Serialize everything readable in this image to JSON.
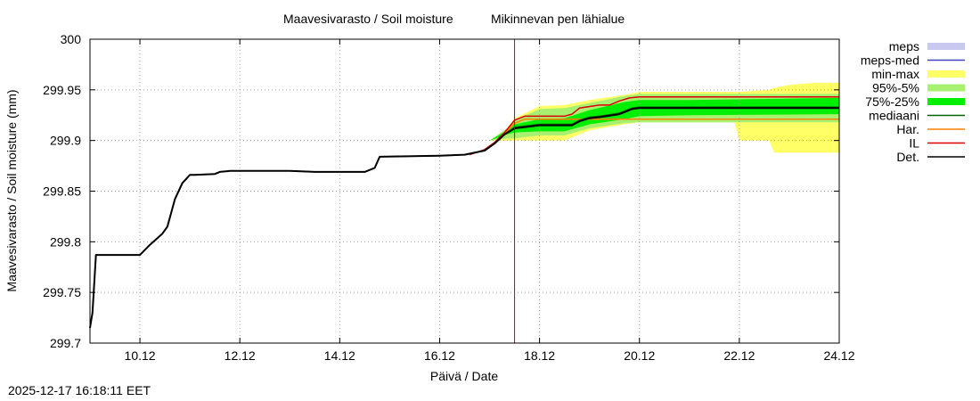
{
  "chart_data": {
    "type": "line",
    "title": "Maavesivarasto / Soil moisture",
    "location": "Mikinnevan pen lähialue",
    "xlabel": "Päivä / Date",
    "ylabel": "Maavesivarasto / Soil moisture (mm)",
    "x_unit": "days since 2025-12-09 00:00",
    "xlim": [
      0,
      15
    ],
    "ylim": [
      299.7,
      300.0
    ],
    "x_ticks": [
      {
        "value": 1,
        "label": "10.12"
      },
      {
        "value": 3,
        "label": "12.12"
      },
      {
        "value": 5,
        "label": "14.12"
      },
      {
        "value": 7,
        "label": "16.12"
      },
      {
        "value": 9,
        "label": "18.12"
      },
      {
        "value": 11,
        "label": "20.12"
      },
      {
        "value": 13,
        "label": "22.12"
      },
      {
        "value": 15,
        "label": "24.12"
      }
    ],
    "y_ticks": [
      {
        "value": 299.7,
        "label": "299.7"
      },
      {
        "value": 299.75,
        "label": "299.75"
      },
      {
        "value": 299.8,
        "label": "299.8"
      },
      {
        "value": 299.85,
        "label": "299.85"
      },
      {
        "value": 299.9,
        "label": "299.9"
      },
      {
        "value": 299.95,
        "label": "299.95"
      },
      {
        "value": 300.0,
        "label": "300"
      }
    ],
    "now_marker_x": 8.5,
    "legend": [
      {
        "key": "meps",
        "label": "meps",
        "color": "#c8c8f0",
        "style": "band"
      },
      {
        "key": "meps_med",
        "label": "meps-med",
        "color": "#4040c0",
        "style": "line"
      },
      {
        "key": "minmax",
        "label": "min-max",
        "color": "#ffff66",
        "style": "band"
      },
      {
        "key": "p95_5",
        "label": "95%-5%",
        "color": "#a8f070",
        "style": "band"
      },
      {
        "key": "p75_25",
        "label": "75%-25%",
        "color": "#00ee00",
        "style": "band"
      },
      {
        "key": "median",
        "label": "mediaani",
        "color": "#006400",
        "style": "line"
      },
      {
        "key": "har",
        "label": "Har.",
        "color": "#ff8000",
        "style": "line"
      },
      {
        "key": "il",
        "label": "IL",
        "color": "#dd0000",
        "style": "line"
      },
      {
        "key": "det",
        "label": "Det.",
        "color": "#000000",
        "style": "line"
      }
    ],
    "series": {
      "det": {
        "name": "Det.",
        "x": [
          0,
          0.05,
          0.12,
          1.0,
          1.2,
          1.45,
          1.55,
          1.7,
          1.85,
          2.0,
          2.1,
          2.5,
          2.6,
          2.8,
          3.0,
          4.0,
          4.5,
          5.0,
          5.5,
          5.7,
          5.8,
          7.0,
          7.5,
          7.9,
          8.1,
          8.3,
          8.5,
          9.0,
          9.5,
          9.65,
          9.8,
          10.0,
          10.2,
          10.6,
          10.85,
          11.0,
          15.0
        ],
        "y": [
          299.715,
          299.73,
          299.787,
          299.787,
          299.797,
          299.808,
          299.815,
          299.842,
          299.858,
          299.866,
          299.866,
          299.867,
          299.869,
          299.87,
          299.87,
          299.87,
          299.869,
          299.869,
          299.869,
          299.873,
          299.884,
          299.885,
          299.886,
          299.89,
          299.897,
          299.906,
          299.912,
          299.915,
          299.915,
          299.915,
          299.919,
          299.922,
          299.923,
          299.926,
          299.931,
          299.932,
          299.932
        ]
      },
      "median": {
        "name": "mediaani",
        "x": [
          0,
          0.05,
          0.12,
          1.0,
          1.2,
          1.45,
          1.55,
          1.7,
          1.85,
          2.0,
          2.1,
          2.5,
          2.6,
          2.8,
          3.0,
          4.0,
          4.5,
          5.0,
          5.5,
          5.7,
          5.8,
          7.0,
          7.5,
          7.9,
          8.1,
          8.3,
          8.5,
          9.0,
          9.5,
          9.65,
          9.8,
          10.0,
          10.2,
          10.6,
          10.85,
          11.0,
          15.0
        ],
        "y": [
          299.715,
          299.73,
          299.787,
          299.787,
          299.797,
          299.808,
          299.815,
          299.842,
          299.858,
          299.866,
          299.866,
          299.867,
          299.869,
          299.87,
          299.87,
          299.87,
          299.869,
          299.869,
          299.869,
          299.873,
          299.884,
          299.885,
          299.886,
          299.89,
          299.897,
          299.906,
          299.913,
          299.916,
          299.916,
          299.916,
          299.92,
          299.923,
          299.924,
          299.927,
          299.932,
          299.933,
          299.933
        ]
      },
      "il": {
        "name": "IL",
        "x": [
          7.6,
          7.9,
          8.1,
          8.3,
          8.5,
          8.7,
          9.0,
          9.5,
          9.65,
          9.8,
          10.2,
          10.4,
          10.6,
          10.8,
          11.0,
          15.0
        ],
        "y": [
          299.886,
          299.891,
          299.898,
          299.908,
          299.92,
          299.924,
          299.924,
          299.924,
          299.926,
          299.932,
          299.935,
          299.935,
          299.939,
          299.942,
          299.943,
          299.943
        ]
      },
      "har": {
        "name": "Har.",
        "x": [
          8.1,
          8.3,
          8.5,
          8.7,
          9.0,
          9.6,
          15.0
        ],
        "y": [
          299.897,
          299.907,
          299.917,
          299.921,
          299.921,
          299.921,
          299.921
        ]
      },
      "meps_med": {
        "name": "meps-med",
        "x": [
          8.1,
          8.3,
          8.5,
          9.0
        ],
        "y": [
          299.897,
          299.906,
          299.912,
          299.915
        ]
      },
      "minmax": {
        "name": "min-max",
        "x": [
          8.0,
          8.35,
          8.5,
          9.0,
          9.5,
          10.0,
          10.7,
          11.0,
          12.0,
          12.9,
          13.0,
          13.6,
          13.7,
          14.0,
          14.5,
          15.0
        ],
        "lower": [
          299.9,
          299.9,
          299.9,
          299.9,
          299.9,
          299.91,
          299.916,
          299.918,
          299.918,
          299.918,
          299.9,
          299.9,
          299.888,
          299.888,
          299.888,
          299.888
        ],
        "upper": [
          299.9,
          299.912,
          299.922,
          299.934,
          299.935,
          299.94,
          299.945,
          299.948,
          299.948,
          299.948,
          299.948,
          299.95,
          299.952,
          299.955,
          299.957,
          299.957
        ]
      },
      "p95_5": {
        "name": "95%-5%",
        "x": [
          8.0,
          8.35,
          8.5,
          9.0,
          9.5,
          10.0,
          10.7,
          11.0,
          12.0,
          15.0
        ],
        "lower": [
          299.9,
          299.902,
          299.902,
          299.905,
          299.905,
          299.912,
          299.917,
          299.918,
          299.918,
          299.918
        ],
        "upper": [
          299.9,
          299.912,
          299.92,
          299.931,
          299.932,
          299.937,
          299.944,
          299.946,
          299.946,
          299.946
        ]
      },
      "p75_25": {
        "name": "75%-25%",
        "x": [
          8.0,
          8.35,
          8.5,
          9.0,
          9.5,
          10.0,
          10.7,
          11.0,
          12.0,
          15.0
        ],
        "lower": [
          299.9,
          299.906,
          299.908,
          299.909,
          299.909,
          299.916,
          299.921,
          299.924,
          299.925,
          299.926
        ],
        "upper": [
          299.9,
          299.91,
          299.916,
          299.921,
          299.922,
          299.93,
          299.938,
          299.94,
          299.94,
          299.942
        ]
      }
    }
  },
  "timestamp": "2025-12-17 16:18:11 EET"
}
